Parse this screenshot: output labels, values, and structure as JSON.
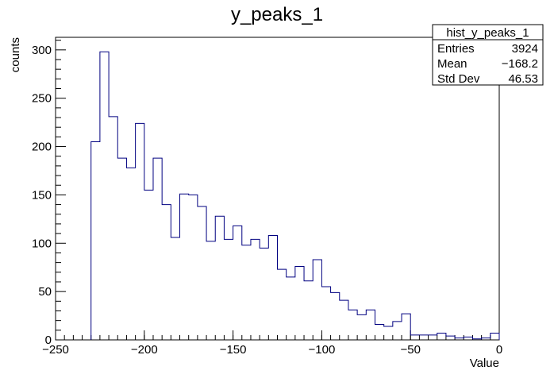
{
  "chart_data": {
    "type": "bar",
    "title": "y_peaks_1",
    "xlabel": "Value",
    "ylabel": "counts",
    "xlim": [
      -250,
      0
    ],
    "ylim": [
      0,
      313
    ],
    "x_ticks": [
      -250,
      -200,
      -150,
      -100,
      -50,
      0
    ],
    "x_tick_labels": [
      "−250",
      "−200",
      "−150",
      "−100",
      "−50",
      "0"
    ],
    "y_ticks": [
      0,
      50,
      100,
      150,
      200,
      250,
      300
    ],
    "y_tick_labels": [
      "0",
      "50",
      "100",
      "150",
      "200",
      "250",
      "300"
    ],
    "grid": false,
    "line_color": "#000080",
    "bins": {
      "edges": [
        -230,
        -225,
        -220,
        -215,
        -210,
        -205,
        -200,
        -195,
        -190,
        -185,
        -180,
        -175,
        -170,
        -165,
        -160,
        -155,
        -150,
        -145,
        -140,
        -135,
        -130,
        -125,
        -120,
        -115,
        -110,
        -105,
        -100,
        -95,
        -90,
        -85,
        -80,
        -75,
        -70,
        -65,
        -60,
        -55,
        -50,
        -45,
        -40,
        -35,
        -30,
        -25,
        -20,
        -15,
        -10,
        -5,
        0
      ],
      "counts": [
        205,
        298,
        231,
        188,
        178,
        224,
        155,
        188,
        140,
        106,
        151,
        150,
        138,
        102,
        128,
        104,
        118,
        98,
        104,
        95,
        108,
        73,
        65,
        76,
        61,
        83,
        55,
        49,
        41,
        31,
        26,
        31,
        16,
        14,
        19,
        27,
        5,
        5,
        5,
        7,
        4,
        2,
        3,
        1,
        2,
        7
      ]
    },
    "stats_box": {
      "title": "hist_y_peaks_1",
      "rows": [
        {
          "label": "Entries",
          "value": "3924"
        },
        {
          "label": "Mean",
          "value": "−168.2"
        },
        {
          "label": "Std Dev",
          "value": "46.53"
        }
      ]
    }
  }
}
